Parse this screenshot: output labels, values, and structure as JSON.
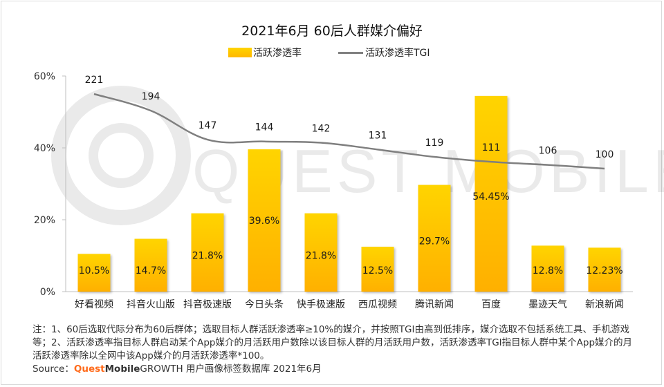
{
  "chart_data": {
    "type": "bar",
    "title": "2021年6月 60后人群媒介偏好",
    "categories": [
      "好看视频",
      "抖音火山版",
      "抖音极速版",
      "今日头条",
      "快手极速版",
      "西瓜视频",
      "腾讯新闻",
      "百度",
      "墨迹天气",
      "新浪新闻"
    ],
    "series": [
      {
        "name": "活跃渗透率",
        "type": "bar",
        "values": [
          10.5,
          14.7,
          21.8,
          39.6,
          21.8,
          12.5,
          29.7,
          54.45,
          12.8,
          12.23
        ],
        "labels": [
          "10.5%",
          "14.7%",
          "21.8%",
          "39.6%",
          "21.8%",
          "12.5%",
          "29.7%",
          "54.45%",
          "12.8%",
          "12.23%"
        ],
        "color": "#ffc000"
      },
      {
        "name": "活跃渗透率TGI",
        "type": "line",
        "values": [
          221,
          194,
          147,
          144,
          142,
          131,
          119,
          111,
          106,
          100
        ],
        "labels": [
          "221",
          "194",
          "147",
          "144",
          "142",
          "131",
          "119",
          "111",
          "106",
          "100"
        ],
        "color": "#7f7f7f"
      }
    ],
    "y_ticks": [
      "0%",
      "20%",
      "40%",
      "60%"
    ],
    "ylim": [
      0,
      60
    ],
    "legend_position": "top-center",
    "grid": false
  },
  "notes": {
    "text": "注：1、60后选取代际分布为60后群体；选取目标人群活跃渗透率≥10%的媒介，并按照TGI由高到低排序，媒介选取不包括系统工具、手机游戏等；2、活跃渗透率指目标人群启动某个App媒介的月活跃用户数除以该目标人群的月活跃用户数，活跃渗透率TGI指目标人群中某个App媒介的月活跃渗透率除以全网中该App媒介的月活跃渗透率*100。",
    "source_prefix": "Source：",
    "brand_quest": "Quest",
    "brand_mobile": "Mobile",
    "source_suffix": " GROWTH 用户画像标签数据库 2021年6月"
  },
  "watermark": "QUEST MOBILE"
}
